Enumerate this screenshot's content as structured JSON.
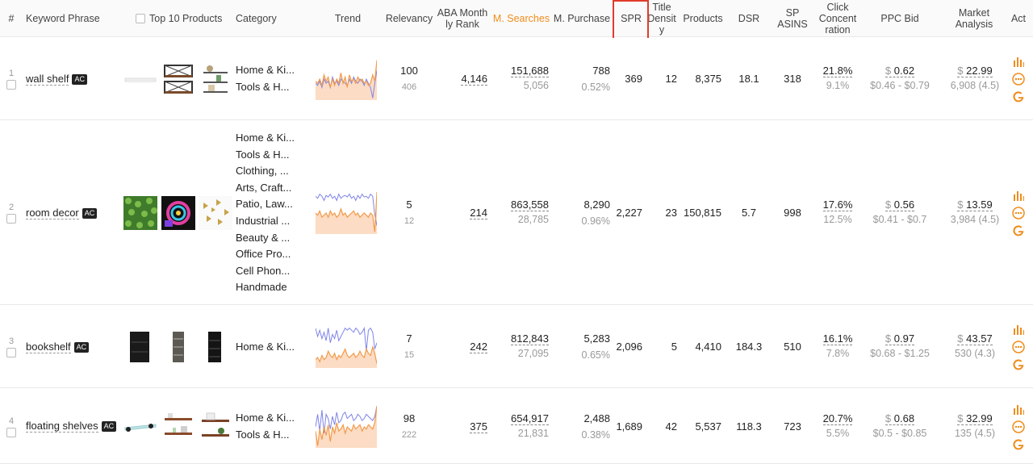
{
  "columns": {
    "num": "#",
    "keyword": "Keyword Phrase",
    "top10": "Top 10 Products",
    "category": "Category",
    "trend": "Trend",
    "relevancy": "Relevancy",
    "aba_line1": "ABA Month",
    "aba_line2": "ly Rank",
    "m_searches": "M. Searches",
    "m_purchase": "M. Purchase",
    "spr": "SPR",
    "title_line1": "Title",
    "title_line2": "Densit",
    "title_line3": "y",
    "products": "Products",
    "dsr": "DSR",
    "sp_line1": "SP",
    "sp_line2": "ASINS",
    "click_line1": "Click",
    "click_line2": "Concent",
    "click_line3": "ration",
    "ppc": "PPC Bid",
    "market_line1": "Market",
    "market_line2": "Analysis",
    "act": "Act"
  },
  "colors": {
    "accent": "#f08c1b",
    "highlight_box": "#e03c2c",
    "trend_area": "#fcdcc4",
    "trend_line_orange": "#f29a4a",
    "trend_line_blue": "#7f84e8"
  },
  "rows": [
    {
      "num": "1",
      "keyword": "wall shelf",
      "badge": "AC",
      "categories": [
        "Home & Ki...",
        "Tools & H..."
      ],
      "relevancy": "100",
      "relevancy_sub": "406",
      "aba_rank": "4,146",
      "searches": "151,688",
      "searches_sub": "5,056",
      "purchase": "788",
      "purchase_sub": "0.52%",
      "spr": "369",
      "title_density": "12",
      "products": "8,375",
      "dsr": "18.1",
      "sp_asins": "318",
      "click": "21.8%",
      "click_sub": "9.1%",
      "ppc": "0.62",
      "ppc_range": "$0.46 - $0.79",
      "market": "22.99",
      "market_sub": "6,908 (4.5)"
    },
    {
      "num": "2",
      "keyword": "room decor",
      "badge": "AC",
      "categories": [
        "Home & Ki...",
        "Tools & H...",
        "Clothing, ...",
        "Arts, Craft...",
        "Patio, Law...",
        "Industrial ...",
        "Beauty & ...",
        "Office Pro...",
        "Cell Phon...",
        "Handmade"
      ],
      "relevancy": "5",
      "relevancy_sub": "12",
      "aba_rank": "214",
      "searches": "863,558",
      "searches_sub": "28,785",
      "purchase": "8,290",
      "purchase_sub": "0.96%",
      "spr": "2,227",
      "title_density": "23",
      "products": "150,815",
      "dsr": "5.7",
      "sp_asins": "998",
      "click": "17.6%",
      "click_sub": "12.5%",
      "ppc": "0.56",
      "ppc_range": "$0.41 - $0.7",
      "market": "13.59",
      "market_sub": "3,984 (4.5)"
    },
    {
      "num": "3",
      "keyword": "bookshelf",
      "badge": "AC",
      "categories": [
        "Home & Ki..."
      ],
      "relevancy": "7",
      "relevancy_sub": "15",
      "aba_rank": "242",
      "searches": "812,843",
      "searches_sub": "27,095",
      "purchase": "5,283",
      "purchase_sub": "0.65%",
      "spr": "2,096",
      "title_density": "5",
      "products": "4,410",
      "dsr": "184.3",
      "sp_asins": "510",
      "click": "16.1%",
      "click_sub": "7.8%",
      "ppc": "0.97",
      "ppc_range": "$0.68 - $1.25",
      "market": "43.57",
      "market_sub": "530 (4.3)"
    },
    {
      "num": "4",
      "keyword": "floating shelves",
      "badge": "AC",
      "categories": [
        "Home & Ki...",
        "Tools & H..."
      ],
      "relevancy": "98",
      "relevancy_sub": "222",
      "aba_rank": "375",
      "searches": "654,917",
      "searches_sub": "21,831",
      "purchase": "2,488",
      "purchase_sub": "0.38%",
      "spr": "1,689",
      "title_density": "42",
      "products": "5,537",
      "dsr": "118.3",
      "sp_asins": "723",
      "click": "20.7%",
      "click_sub": "5.5%",
      "ppc": "0.68",
      "ppc_range": "$0.5 - $0.85",
      "market": "32.99",
      "market_sub": "135 (4.5)"
    }
  ],
  "currency": "$",
  "icons": [
    "bar-chart-icon",
    "more-options-icon",
    "google-icon",
    "checkbox-icon"
  ]
}
